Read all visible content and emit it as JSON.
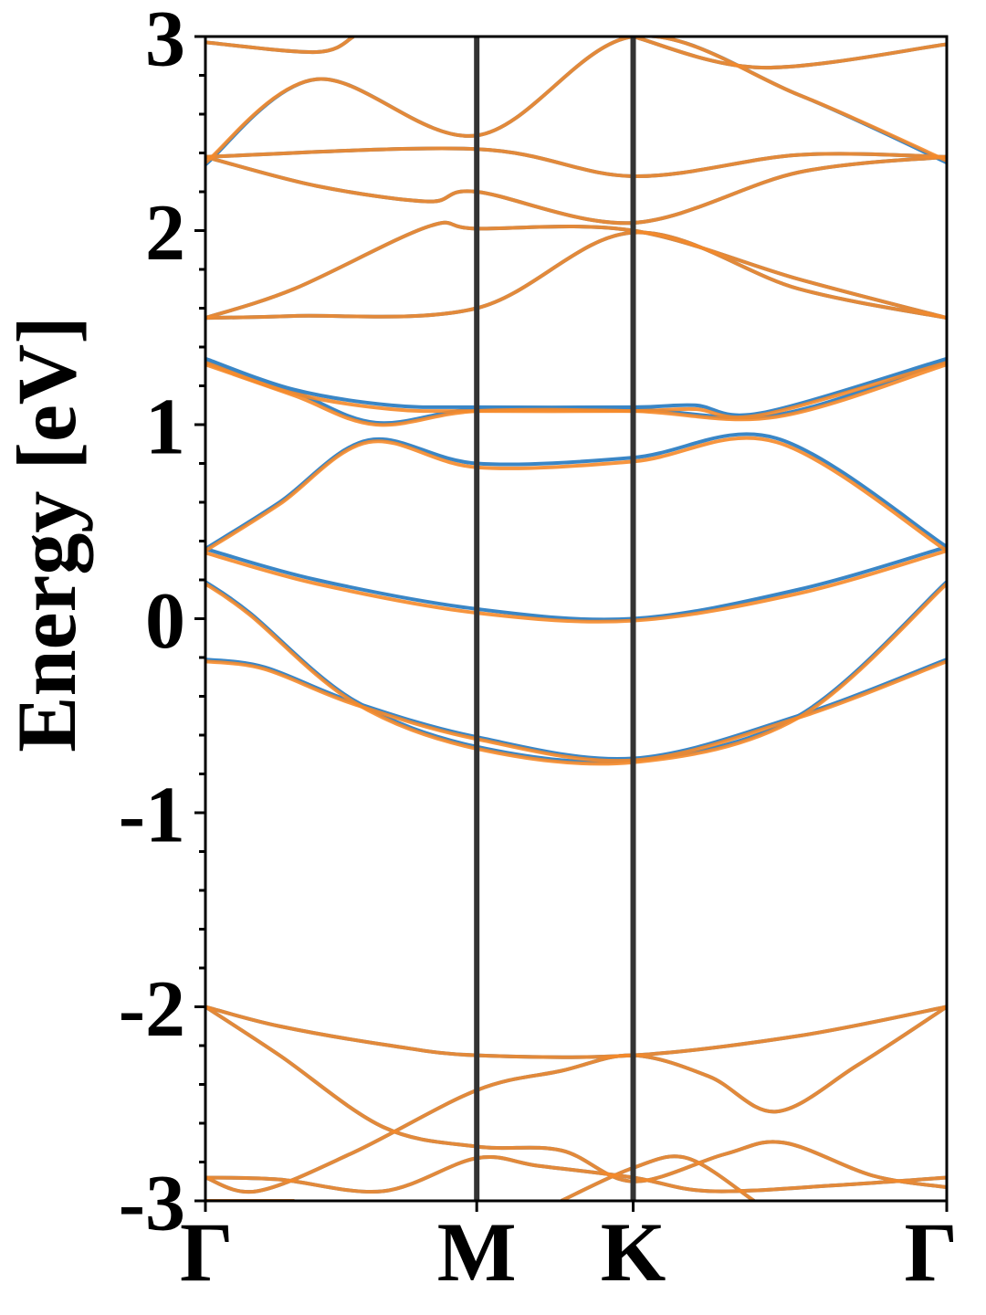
{
  "chart_data": {
    "type": "line",
    "title": "",
    "ylabel": "Energy [eV]",
    "xlabel": "",
    "ylim": [
      -3,
      3
    ],
    "x_range": [
      0,
      1
    ],
    "y_ticks": [
      3,
      2,
      1,
      0,
      -1,
      -2,
      -3
    ],
    "y_tick_labels": [
      "3",
      "2",
      "1",
      "0",
      "-1",
      "-2",
      "-3"
    ],
    "y_minor_step": 0.2,
    "k_points": [
      {
        "label": "Γ",
        "x": 0.0
      },
      {
        "label": "M",
        "x": 0.366
      },
      {
        "label": "K",
        "x": 0.577
      },
      {
        "label": "Γ",
        "x": 1.0
      }
    ],
    "grid": false,
    "legend": "none",
    "colors": {
      "series_a": "#3a86c6",
      "series_b": "#f5892a",
      "vlines": "#333333"
    },
    "series": [
      {
        "color_key": "series_a",
        "bands": [
          [
            [
              0,
              -3.0
            ],
            [
              0.12,
              -3.0
            ]
          ],
          [
            [
              0,
              -2.88
            ],
            [
              0.1,
              -2.89
            ],
            [
              0.24,
              -2.95
            ],
            [
              0.366,
              -2.78
            ],
            [
              0.45,
              -2.82
            ],
            [
              0.577,
              -2.88
            ],
            [
              0.68,
              -2.95
            ],
            [
              0.85,
              -2.92
            ],
            [
              1.0,
              -2.88
            ]
          ],
          [
            [
              0,
              -2.88
            ],
            [
              0.07,
              -2.95
            ],
            [
              0.2,
              -2.75
            ],
            [
              0.366,
              -2.43
            ],
            [
              0.48,
              -2.33
            ],
            [
              0.577,
              -2.25
            ],
            [
              0.68,
              -2.36
            ],
            [
              0.77,
              -2.54
            ],
            [
              0.88,
              -2.3
            ],
            [
              1.0,
              -2.0
            ]
          ],
          [
            [
              0,
              -2.0
            ],
            [
              0.1,
              -2.1
            ],
            [
              0.25,
              -2.2
            ],
            [
              0.366,
              -2.25
            ],
            [
              0.577,
              -2.25
            ],
            [
              0.8,
              -2.15
            ],
            [
              1.0,
              -2.0
            ]
          ],
          [
            [
              0,
              -2.0
            ],
            [
              0.1,
              -2.25
            ],
            [
              0.24,
              -2.62
            ],
            [
              0.366,
              -2.72
            ],
            [
              0.48,
              -2.74
            ],
            [
              0.577,
              -2.9
            ],
            [
              0.7,
              -2.76
            ],
            [
              0.78,
              -2.7
            ],
            [
              0.9,
              -2.87
            ],
            [
              1.0,
              -2.93
            ]
          ],
          [
            [
              0.48,
              -3.0
            ],
            [
              0.577,
              -2.83
            ],
            [
              0.65,
              -2.78
            ],
            [
              0.74,
              -3.0
            ]
          ],
          [
            [
              0,
              -0.21
            ],
            [
              0.08,
              -0.25
            ],
            [
              0.2,
              -0.43
            ],
            [
              0.366,
              -0.61
            ],
            [
              0.577,
              -0.72
            ],
            [
              0.8,
              -0.5
            ],
            [
              1.0,
              -0.21
            ]
          ],
          [
            [
              0,
              0.19
            ],
            [
              0.06,
              0.03
            ],
            [
              0.2,
              -0.42
            ],
            [
              0.366,
              -0.66
            ],
            [
              0.577,
              -0.73
            ],
            [
              0.8,
              -0.5
            ],
            [
              1.0,
              0.19
            ]
          ],
          [
            [
              0,
              0.36
            ],
            [
              0.15,
              0.2
            ],
            [
              0.366,
              0.05
            ],
            [
              0.577,
              0.0
            ],
            [
              0.8,
              0.15
            ],
            [
              1.0,
              0.37
            ]
          ],
          [
            [
              0,
              0.36
            ],
            [
              0.1,
              0.6
            ],
            [
              0.22,
              0.92
            ],
            [
              0.366,
              0.8
            ],
            [
              0.577,
              0.83
            ],
            [
              0.77,
              0.93
            ],
            [
              1.0,
              0.37
            ]
          ],
          [
            [
              0,
              1.33
            ],
            [
              0.12,
              1.17
            ],
            [
              0.23,
              1.01
            ],
            [
              0.366,
              1.08
            ],
            [
              0.577,
              1.08
            ],
            [
              0.77,
              1.05
            ],
            [
              1.0,
              1.33
            ]
          ],
          [
            [
              0,
              1.34
            ],
            [
              0.12,
              1.18
            ],
            [
              0.25,
              1.1
            ],
            [
              0.366,
              1.09
            ],
            [
              0.577,
              1.09
            ],
            [
              0.66,
              1.1
            ],
            [
              0.75,
              1.06
            ],
            [
              1.0,
              1.34
            ]
          ],
          [
            [
              0,
              1.55
            ],
            [
              0.12,
              1.56
            ],
            [
              0.366,
              1.6
            ],
            [
              0.577,
              1.99
            ],
            [
              0.8,
              1.7
            ],
            [
              1.0,
              1.55
            ]
          ],
          [
            [
              0,
              1.55
            ],
            [
              0.12,
              1.7
            ],
            [
              0.3,
              2.02
            ],
            [
              0.366,
              2.01
            ],
            [
              0.577,
              2.0
            ],
            [
              0.8,
              1.75
            ],
            [
              1.0,
              1.55
            ]
          ],
          [
            [
              0,
              2.38
            ],
            [
              0.15,
              2.23
            ],
            [
              0.3,
              2.15
            ],
            [
              0.366,
              2.2
            ],
            [
              0.577,
              2.04
            ],
            [
              0.8,
              2.3
            ],
            [
              1.0,
              2.38
            ]
          ],
          [
            [
              0,
              2.38
            ],
            [
              0.366,
              2.42
            ],
            [
              0.577,
              2.28
            ],
            [
              0.8,
              2.39
            ],
            [
              1.0,
              2.38
            ]
          ],
          [
            [
              0,
              2.34
            ],
            [
              0.15,
              2.78
            ],
            [
              0.366,
              2.49
            ],
            [
              0.577,
              3.0
            ],
            [
              0.8,
              2.7
            ],
            [
              1.0,
              2.35
            ]
          ],
          [
            [
              0,
              2.97
            ],
            [
              0.15,
              2.92
            ],
            [
              0.2,
              3.0
            ]
          ],
          [
            [
              0.577,
              3.0
            ],
            [
              0.75,
              2.84
            ],
            [
              1.0,
              2.96
            ]
          ]
        ]
      },
      {
        "color_key": "series_b",
        "bands": [
          [
            [
              0,
              -3.0
            ],
            [
              0.12,
              -3.0
            ]
          ],
          [
            [
              0,
              -2.88
            ],
            [
              0.1,
              -2.89
            ],
            [
              0.24,
              -2.95
            ],
            [
              0.366,
              -2.78
            ],
            [
              0.45,
              -2.82
            ],
            [
              0.577,
              -2.88
            ],
            [
              0.68,
              -2.95
            ],
            [
              0.85,
              -2.92
            ],
            [
              1.0,
              -2.88
            ]
          ],
          [
            [
              0,
              -2.88
            ],
            [
              0.07,
              -2.95
            ],
            [
              0.2,
              -2.75
            ],
            [
              0.366,
              -2.43
            ],
            [
              0.48,
              -2.33
            ],
            [
              0.577,
              -2.25
            ],
            [
              0.68,
              -2.36
            ],
            [
              0.77,
              -2.54
            ],
            [
              0.88,
              -2.3
            ],
            [
              1.0,
              -2.0
            ]
          ],
          [
            [
              0,
              -2.0
            ],
            [
              0.1,
              -2.1
            ],
            [
              0.25,
              -2.2
            ],
            [
              0.366,
              -2.25
            ],
            [
              0.577,
              -2.25
            ],
            [
              0.8,
              -2.15
            ],
            [
              1.0,
              -2.0
            ]
          ],
          [
            [
              0,
              -2.0
            ],
            [
              0.1,
              -2.25
            ],
            [
              0.24,
              -2.62
            ],
            [
              0.366,
              -2.72
            ],
            [
              0.48,
              -2.74
            ],
            [
              0.577,
              -2.9
            ],
            [
              0.7,
              -2.76
            ],
            [
              0.78,
              -2.7
            ],
            [
              0.9,
              -2.87
            ],
            [
              1.0,
              -2.93
            ]
          ],
          [
            [
              0.48,
              -3.0
            ],
            [
              0.577,
              -2.83
            ],
            [
              0.65,
              -2.78
            ],
            [
              0.74,
              -3.0
            ]
          ],
          [
            [
              0,
              -0.22
            ],
            [
              0.08,
              -0.26
            ],
            [
              0.2,
              -0.44
            ],
            [
              0.366,
              -0.62
            ],
            [
              0.577,
              -0.73
            ],
            [
              0.8,
              -0.51
            ],
            [
              1.0,
              -0.22
            ]
          ],
          [
            [
              0,
              0.18
            ],
            [
              0.06,
              0.02
            ],
            [
              0.2,
              -0.43
            ],
            [
              0.366,
              -0.67
            ],
            [
              0.577,
              -0.74
            ],
            [
              0.8,
              -0.51
            ],
            [
              1.0,
              0.18
            ]
          ],
          [
            [
              0,
              0.34
            ],
            [
              0.15,
              0.18
            ],
            [
              0.366,
              0.03
            ],
            [
              0.577,
              -0.01
            ],
            [
              0.8,
              0.13
            ],
            [
              1.0,
              0.35
            ]
          ],
          [
            [
              0,
              0.35
            ],
            [
              0.1,
              0.59
            ],
            [
              0.22,
              0.91
            ],
            [
              0.366,
              0.78
            ],
            [
              0.577,
              0.81
            ],
            [
              0.77,
              0.91
            ],
            [
              1.0,
              0.35
            ]
          ],
          [
            [
              0,
              1.31
            ],
            [
              0.12,
              1.15
            ],
            [
              0.23,
              1.0
            ],
            [
              0.366,
              1.07
            ],
            [
              0.577,
              1.07
            ],
            [
              0.77,
              1.04
            ],
            [
              1.0,
              1.31
            ]
          ],
          [
            [
              0,
              1.32
            ],
            [
              0.12,
              1.16
            ],
            [
              0.25,
              1.08
            ],
            [
              0.366,
              1.07
            ],
            [
              0.577,
              1.07
            ],
            [
              0.66,
              1.08
            ],
            [
              0.75,
              1.05
            ],
            [
              1.0,
              1.32
            ]
          ],
          [
            [
              0,
              1.55
            ],
            [
              0.12,
              1.56
            ],
            [
              0.366,
              1.6
            ],
            [
              0.577,
              1.99
            ],
            [
              0.8,
              1.7
            ],
            [
              1.0,
              1.55
            ]
          ],
          [
            [
              0,
              1.55
            ],
            [
              0.12,
              1.7
            ],
            [
              0.3,
              2.02
            ],
            [
              0.366,
              2.01
            ],
            [
              0.577,
              2.0
            ],
            [
              0.8,
              1.75
            ],
            [
              1.0,
              1.55
            ]
          ],
          [
            [
              0,
              2.38
            ],
            [
              0.15,
              2.23
            ],
            [
              0.3,
              2.15
            ],
            [
              0.366,
              2.2
            ],
            [
              0.577,
              2.04
            ],
            [
              0.8,
              2.3
            ],
            [
              1.0,
              2.38
            ]
          ],
          [
            [
              0,
              2.38
            ],
            [
              0.366,
              2.42
            ],
            [
              0.577,
              2.28
            ],
            [
              0.8,
              2.39
            ],
            [
              1.0,
              2.38
            ]
          ],
          [
            [
              0,
              2.35
            ],
            [
              0.15,
              2.78
            ],
            [
              0.366,
              2.49
            ],
            [
              0.577,
              3.0
            ],
            [
              0.8,
              2.7
            ],
            [
              1.0,
              2.36
            ]
          ],
          [
            [
              0,
              2.97
            ],
            [
              0.15,
              2.92
            ],
            [
              0.2,
              3.0
            ]
          ],
          [
            [
              0.577,
              3.0
            ],
            [
              0.75,
              2.84
            ],
            [
              1.0,
              2.96
            ]
          ]
        ]
      }
    ]
  }
}
